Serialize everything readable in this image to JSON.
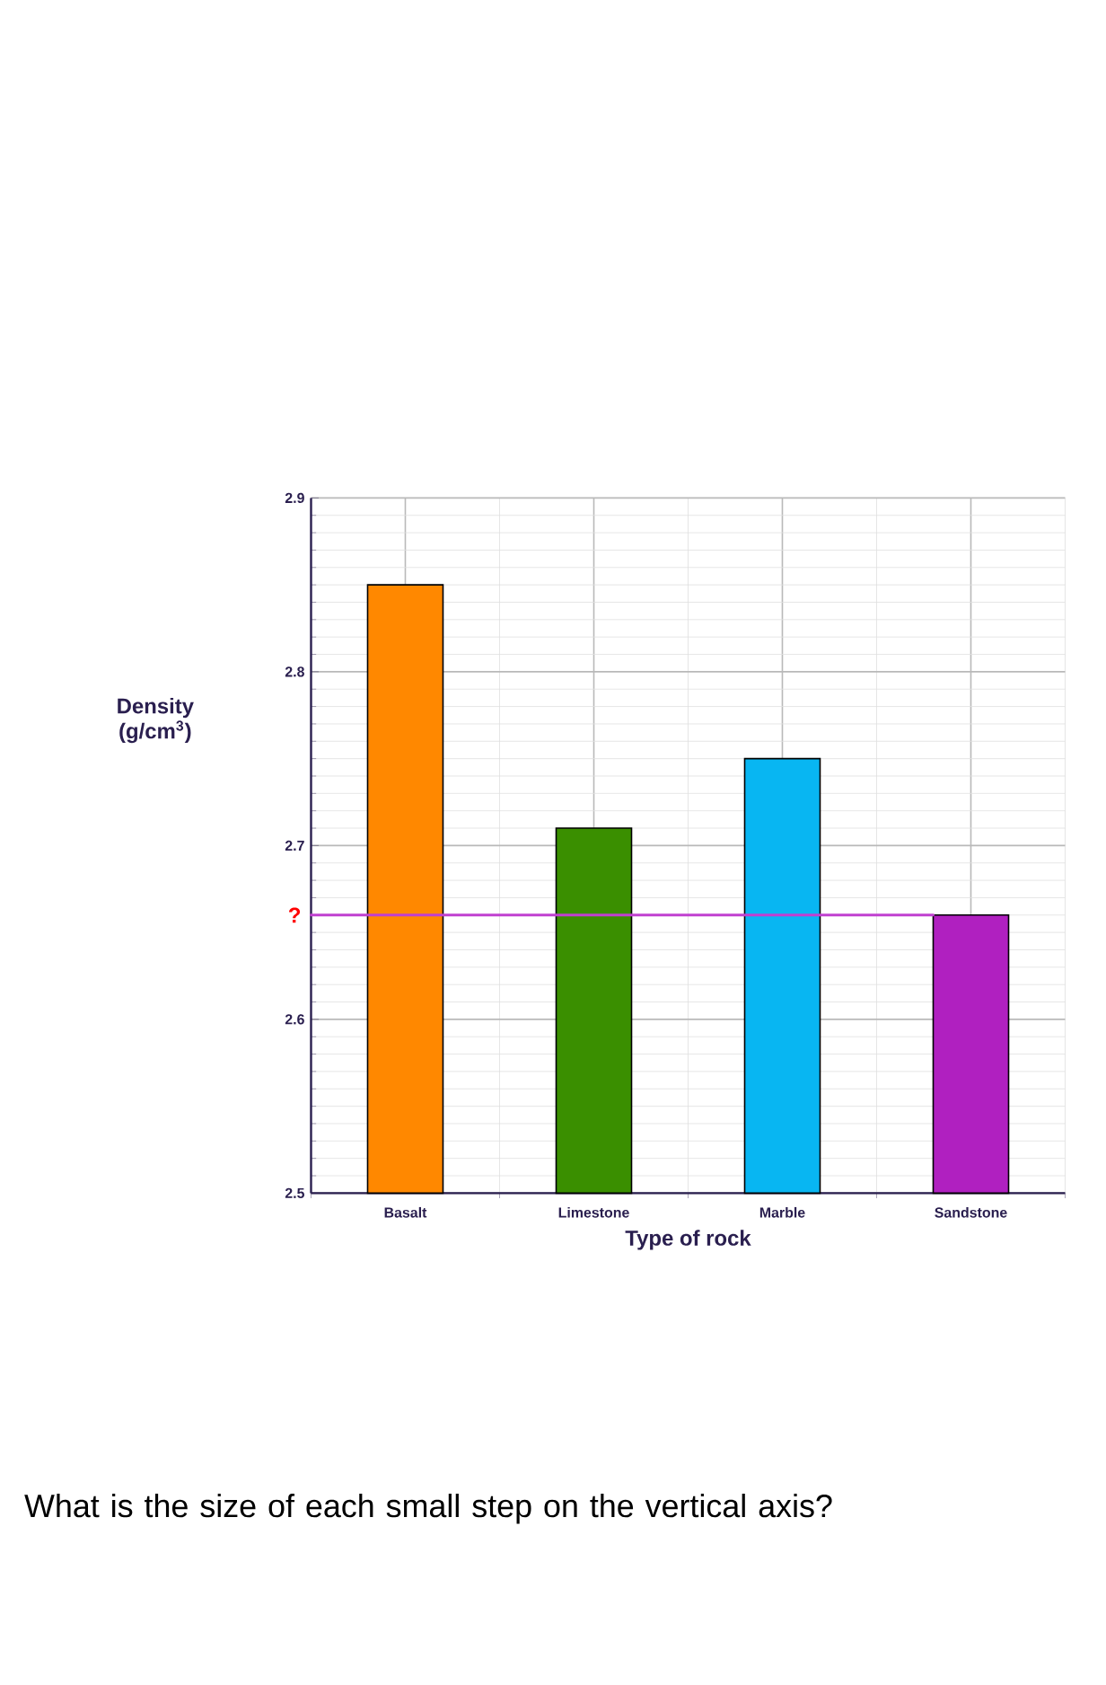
{
  "chart_data": {
    "type": "bar",
    "xlabel": "Type of rock",
    "ylabel": "Density (g/cm$^{3}$)",
    "categories": [
      "Basalt",
      "Limestone",
      "Marble",
      "Sandstone"
    ],
    "values": [
      2.85,
      2.71,
      2.75,
      2.66
    ],
    "colors": [
      "#ff8800",
      "#3a8f00",
      "#08b6f2",
      "#b020c0"
    ],
    "ylim": [
      2.5,
      2.9
    ],
    "yticks": [
      2.5,
      2.6,
      2.7,
      2.8,
      2.9
    ],
    "grid": true,
    "ref_lines": [
      {
        "axis": "y",
        "value": 2.66,
        "label": "?",
        "color": "#c040d0"
      }
    ],
    "annotations": [
      "What is the size of each small step on the vertical axis?"
    ]
  }
}
